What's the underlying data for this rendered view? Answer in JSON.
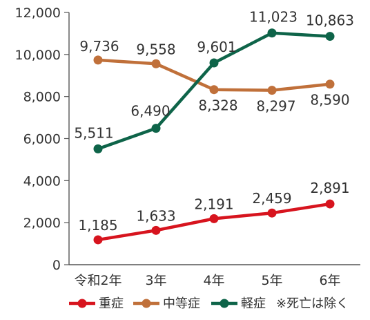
{
  "chart_data": {
    "type": "line",
    "categories": [
      "令和2年",
      "3年",
      "4年",
      "5年",
      "6年"
    ],
    "ylim": [
      0,
      12000
    ],
    "yticks": [
      "0",
      "2,000",
      "4,000",
      "6,000",
      "8,000",
      "10,000",
      "12,000"
    ],
    "ytick_values": [
      0,
      2000,
      4000,
      6000,
      8000,
      10000,
      12000
    ],
    "legend_position": "bottom",
    "legend_note": "※死亡は除く",
    "grid": false,
    "series": [
      {
        "name": "重症",
        "color": "#d7141e",
        "values": [
          1185,
          1633,
          2191,
          2459,
          2891
        ],
        "labels": [
          "1,185",
          "1,633",
          "2,191",
          "2,459",
          "2,891"
        ]
      },
      {
        "name": "中等症",
        "color": "#c0703a",
        "values": [
          9736,
          9558,
          8328,
          8297,
          8590
        ],
        "labels": [
          "9,736",
          "9,558",
          "8,328",
          "8,297",
          "8,590"
        ]
      },
      {
        "name": "軽症",
        "color": "#0e6449",
        "values": [
          5511,
          6490,
          9601,
          11023,
          10863
        ],
        "labels": [
          "5,511",
          "6,490",
          "9,601",
          "11,023",
          "10,863"
        ]
      }
    ]
  }
}
